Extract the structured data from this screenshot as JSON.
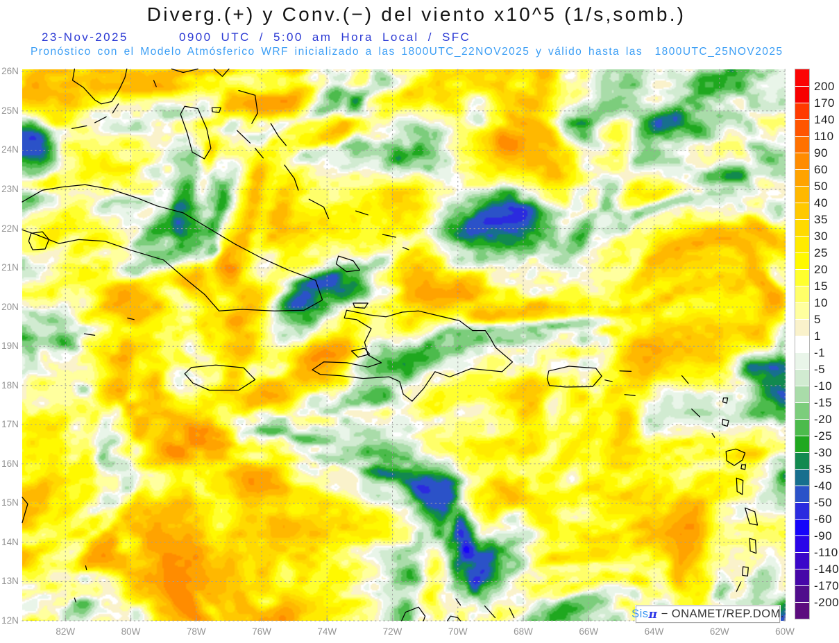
{
  "header": {
    "title": "Diverg.(+) y Conv.(−) del viento x10^5 (1/s,somb.)",
    "date": "23-Nov-2025",
    "time": "0900 UTC / 5:00 am Hora Local / SFC",
    "forecast_line": "Pronóstico con el Modelo Atmósferico WRF inicializado a las 1800UTC_22NOV2025 y válido hasta las  1800UTC_25NOV2025"
  },
  "axes": {
    "lat_labels": [
      "26N",
      "25N",
      "24N",
      "23N",
      "22N",
      "21N",
      "20N",
      "19N",
      "18N",
      "17N",
      "16N",
      "15N",
      "14N",
      "13N",
      "12N"
    ],
    "lon_labels": [
      "82W",
      "80W",
      "78W",
      "76W",
      "74W",
      "72W",
      "70W",
      "68W",
      "66W",
      "64W",
      "62W",
      "60W"
    ]
  },
  "colorbar": {
    "tick_labels": [
      "200",
      "170",
      "140",
      "110",
      "90",
      "60",
      "50",
      "40",
      "35",
      "30",
      "25",
      "20",
      "15",
      "10",
      "5",
      "1",
      "-1",
      "-5",
      "-10",
      "-15",
      "-20",
      "-25",
      "-30",
      "-35",
      "-40",
      "-50",
      "-60",
      "-90",
      "-110",
      "-140",
      "-170",
      "-200"
    ],
    "segment_colors": [
      "#fb0404",
      "#f70000",
      "#ff3a00",
      "#ff5500",
      "#ff7100",
      "#ff8c00",
      "#ffa300",
      "#ffb800",
      "#ffc900",
      "#ffda00",
      "#ffeb00",
      "#fff900",
      "#ffff2e",
      "#ffff69",
      "#ffff9e",
      "#faf2cb",
      "#ffffff",
      "#e9f5e9",
      "#d1ebd1",
      "#a9dca9",
      "#7ccd7c",
      "#4cbb4c",
      "#1fa81f",
      "#12894f",
      "#176f8e",
      "#2b52c8",
      "#2b2bdf",
      "#1604fa",
      "#2a05e8",
      "#3a06c9",
      "#4607a8",
      "#500d8c",
      "#5c0c7e"
    ]
  },
  "attribution": {
    "brand_sis": "Sis",
    "brand_pi": "π",
    "text": "− ONAMET/REP.DOM."
  },
  "colors": {
    "title": "#141414",
    "date_blue": "#2b39d4",
    "forecast_blue": "#3b9ef5",
    "axis_gray": "#949494",
    "grid_gray": "#9e9e9e",
    "coastline": "#000000",
    "attr_sis": "#3e97f2",
    "attr_pi": "#2a35e8",
    "attr_text": "#333333",
    "colorbar_label": "#1c1c1c"
  }
}
